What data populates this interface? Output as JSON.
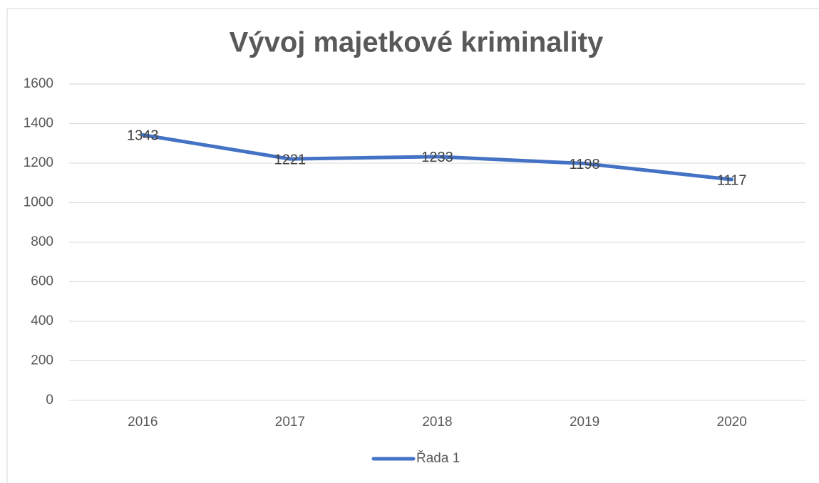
{
  "chart_data": {
    "type": "line",
    "title": "Vývoj majetkové kriminality",
    "categories": [
      "2016",
      "2017",
      "2018",
      "2019",
      "2020"
    ],
    "series": [
      {
        "name": "Řada 1",
        "color": "#4472c4",
        "values": [
          1343,
          1221,
          1233,
          1198,
          1117
        ]
      }
    ],
    "ylim": [
      0,
      1600
    ],
    "yticks": [
      0,
      200,
      400,
      600,
      800,
      1000,
      1200,
      1400,
      1600
    ],
    "grid": true,
    "data_labels": true,
    "legend": "bottom"
  }
}
